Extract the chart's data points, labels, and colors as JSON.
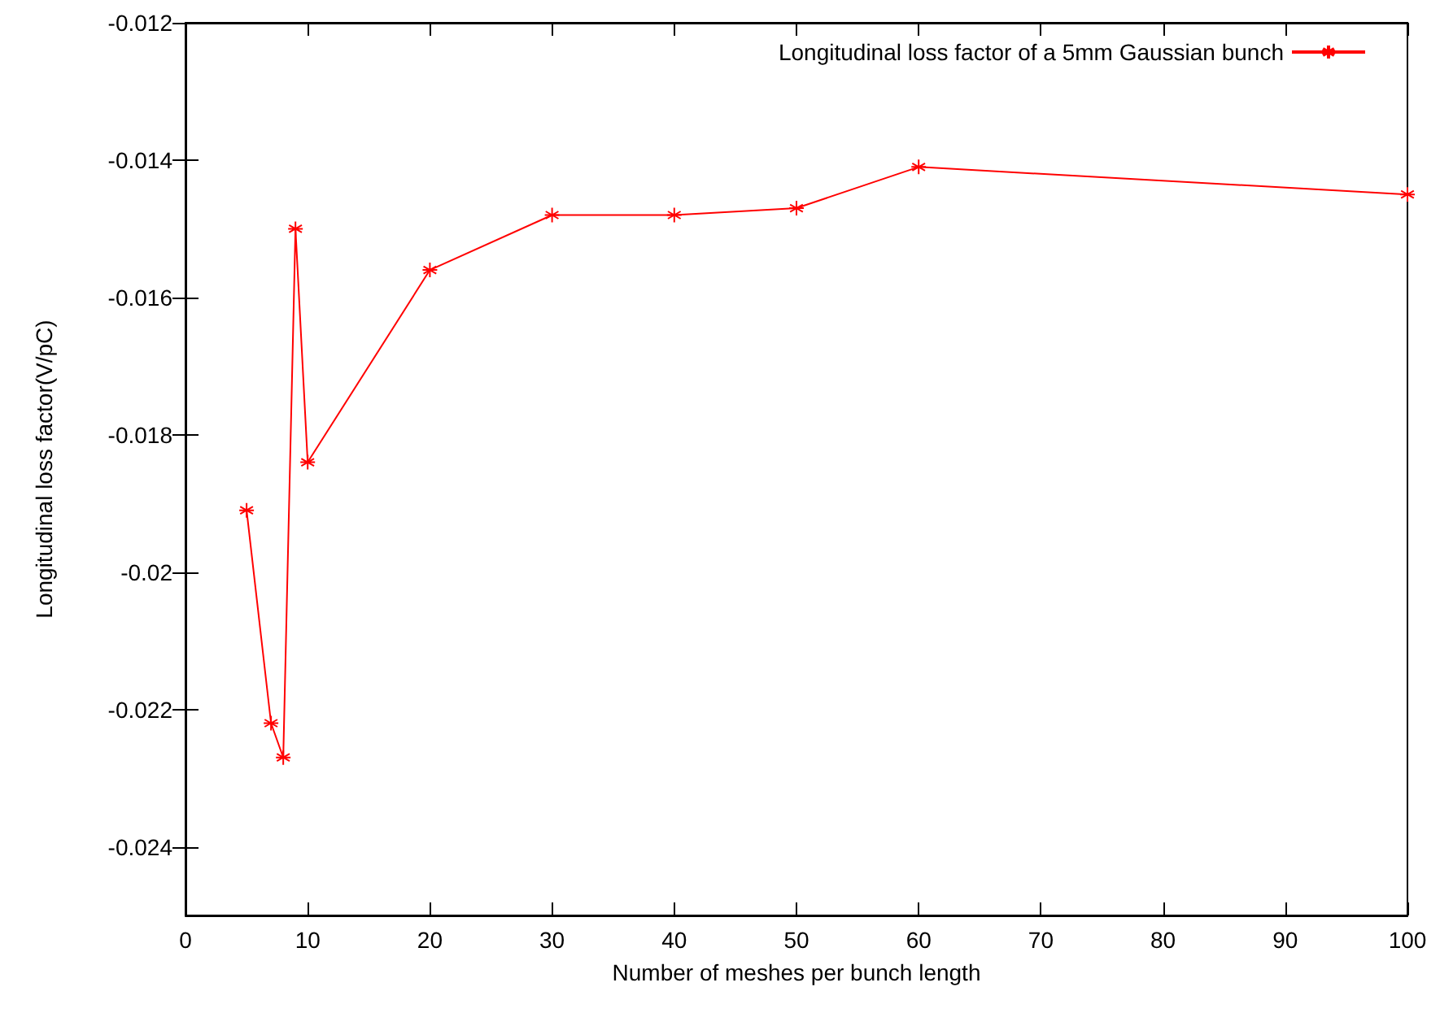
{
  "chart_data": {
    "type": "line",
    "xlabel": "Number of meshes per bunch length",
    "ylabel": "Longitudinal loss factor(V/pC)",
    "x": [
      5,
      7,
      8,
      9,
      10,
      20,
      30,
      40,
      50,
      60,
      100
    ],
    "series": [
      {
        "name": "Longitudinal loss factor of a 5mm Gaussian bunch",
        "color": "#ff0000",
        "values": [
          -0.0191,
          -0.0222,
          -0.0227,
          -0.015,
          -0.0184,
          -0.0156,
          -0.0148,
          -0.0148,
          -0.0147,
          -0.0141,
          -0.0145
        ]
      }
    ],
    "xlim": [
      0,
      100
    ],
    "xticks": [
      0,
      10,
      20,
      30,
      40,
      50,
      60,
      70,
      80,
      90,
      100
    ],
    "ylim": [
      -0.025,
      -0.012
    ],
    "yticks": [
      -0.024,
      -0.022,
      -0.02,
      -0.018,
      -0.016,
      -0.014,
      -0.012
    ],
    "grid": false,
    "legend": "top right",
    "marker": "cross",
    "line_style": "solid"
  }
}
